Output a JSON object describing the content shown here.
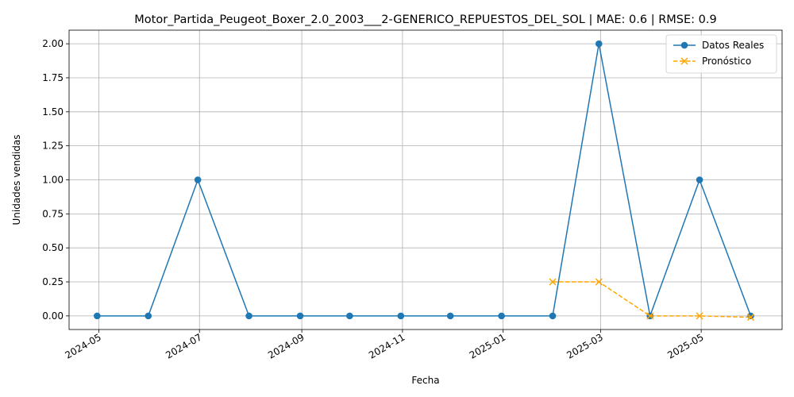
{
  "chart_data": {
    "type": "line",
    "title": "Motor_Partida_Peugeot_Boxer_2.0_2003___2-GENERICO_REPUESTOS_DEL_SOL | MAE: 0.6 | RMSE: 0.9",
    "xlabel": "Fecha",
    "ylabel": "Unidades vendidas",
    "ylim": [
      -0.1,
      2.1
    ],
    "xlim": [
      "2024-04-13",
      "2025-06-19"
    ],
    "grid": true,
    "legend_position": "top-right",
    "x_ticks": [
      "2024-05",
      "2024-07",
      "2024-09",
      "2024-11",
      "2025-01",
      "2025-03",
      "2025-05"
    ],
    "y_ticks": [
      "0.00",
      "0.25",
      "0.50",
      "0.75",
      "1.00",
      "1.25",
      "1.50",
      "1.75",
      "2.00"
    ],
    "series": [
      {
        "name": "Datos Reales",
        "color": "#1f77b4",
        "style": "solid",
        "marker": "circle",
        "x": [
          "2024-04-30",
          "2024-05-31",
          "2024-06-30",
          "2024-07-31",
          "2024-08-31",
          "2024-09-30",
          "2024-10-31",
          "2024-11-30",
          "2024-12-31",
          "2025-01-31",
          "2025-02-28",
          "2025-03-31",
          "2025-04-30",
          "2025-05-31"
        ],
        "values": [
          0,
          0,
          1,
          0,
          0,
          0,
          0,
          0,
          0,
          0,
          2,
          0,
          1,
          0
        ]
      },
      {
        "name": "Pronóstico",
        "color": "#ffa500",
        "style": "dashed",
        "marker": "x",
        "x": [
          "2025-01-31",
          "2025-02-28",
          "2025-03-31",
          "2025-04-30",
          "2025-05-31"
        ],
        "values": [
          0.25,
          0.25,
          0.0,
          0.0,
          -0.01
        ]
      }
    ]
  }
}
